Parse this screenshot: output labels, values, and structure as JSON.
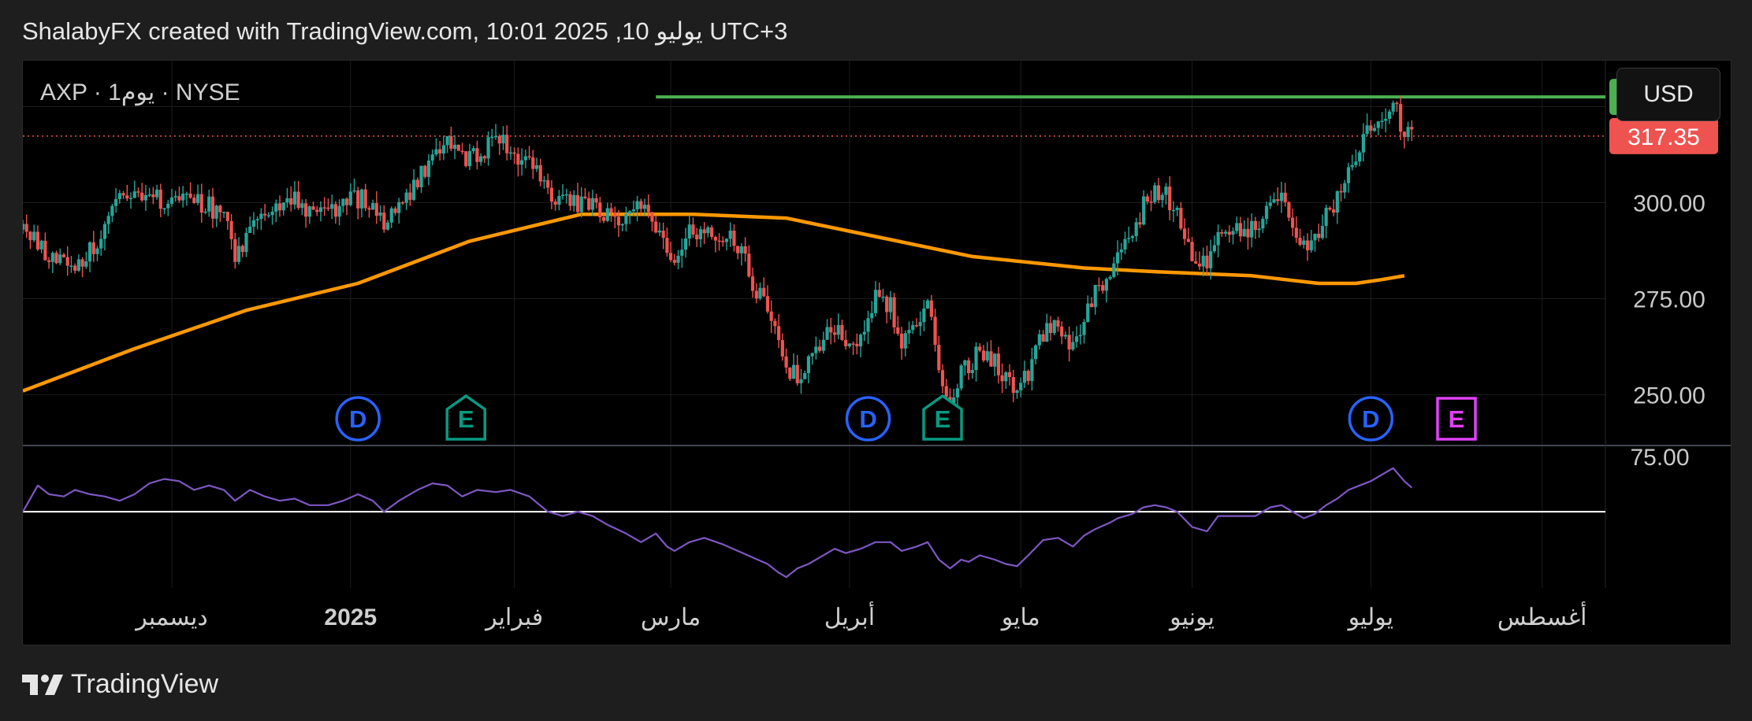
{
  "header": {
    "caption": "ShalabyFX created with TradingView.com, 10:01 2025 ,10 يوليو UTC+3"
  },
  "symbol_label": "AXP · 1يوم · NYSE",
  "currency_button": "USD",
  "footer": {
    "brand": "TradingView",
    "logo_icon": "tradingview-logo-icon"
  },
  "colors": {
    "up": "#26a69a",
    "down": "#ef5350",
    "ma": "#ff9800",
    "rsi": "#7e57c2",
    "resistance": "#4caf50",
    "current_price_line": "#ef5350",
    "dividend_marker": "#2962ff",
    "earnings_past": "#089981",
    "earnings_future": "#e040fb"
  },
  "chart_data": {
    "type": "candlestick",
    "symbol": "AXP",
    "interval": "1يوم",
    "exchange": "NYSE",
    "currency": "USD",
    "price_axis": {
      "range": [
        237,
        337
      ],
      "ticks": [
        "250.00",
        "275.00",
        "300.00"
      ],
      "rsi_top_tick": "75.00"
    },
    "time_axis": {
      "ticks": [
        {
          "label": "ديسمبر",
          "bold": false
        },
        {
          "label": "2025",
          "bold": true
        },
        {
          "label": "فبراير",
          "bold": false
        },
        {
          "label": "مارس",
          "bold": false
        },
        {
          "label": "أبريل",
          "bold": false
        },
        {
          "label": "مايو",
          "bold": false
        },
        {
          "label": "يونيو",
          "bold": false
        },
        {
          "label": "يوليو",
          "bold": false
        },
        {
          "label": "أغسطس",
          "bold": false
        }
      ]
    },
    "price_labels": [
      {
        "value": "327.56",
        "kind": "resistance"
      },
      {
        "value": "317.35",
        "kind": "last"
      }
    ],
    "resistance_level": 327.56,
    "last_price": 317.35,
    "close_path": [
      [
        0,
        293
      ],
      [
        4,
        289
      ],
      [
        8,
        286
      ],
      [
        14,
        282
      ],
      [
        18,
        288
      ],
      [
        22,
        293
      ],
      [
        26,
        300
      ],
      [
        30,
        303
      ],
      [
        34,
        302
      ],
      [
        38,
        300
      ],
      [
        42,
        301
      ],
      [
        46,
        300
      ],
      [
        50,
        299
      ],
      [
        54,
        297
      ],
      [
        57,
        287
      ],
      [
        61,
        292
      ],
      [
        65,
        296
      ],
      [
        69,
        300
      ],
      [
        73,
        302
      ],
      [
        77,
        298
      ],
      [
        82,
        297
      ],
      [
        86,
        300
      ],
      [
        90,
        301
      ],
      [
        94,
        300
      ],
      [
        97,
        294
      ],
      [
        101,
        299
      ],
      [
        106,
        306
      ],
      [
        110,
        312
      ],
      [
        114,
        315
      ],
      [
        118,
        311
      ],
      [
        122,
        313
      ],
      [
        127,
        316
      ],
      [
        131,
        314
      ],
      [
        136,
        310
      ],
      [
        141,
        303
      ],
      [
        145,
        301
      ],
      [
        149,
        300
      ],
      [
        153,
        301
      ],
      [
        157,
        296
      ],
      [
        162,
        297
      ],
      [
        166,
        299
      ],
      [
        170,
        294
      ],
      [
        173,
        289
      ],
      [
        175,
        286
      ],
      [
        179,
        292
      ],
      [
        183,
        294
      ],
      [
        188,
        291
      ],
      [
        192,
        289
      ],
      [
        196,
        279
      ],
      [
        200,
        274
      ],
      [
        203,
        265
      ],
      [
        205,
        258
      ],
      [
        208,
        254
      ],
      [
        211,
        259
      ],
      [
        214,
        262
      ],
      [
        218,
        268
      ],
      [
        221,
        263
      ],
      [
        225,
        266
      ],
      [
        229,
        276
      ],
      [
        233,
        273
      ],
      [
        236,
        264
      ],
      [
        240,
        270
      ],
      [
        243,
        274
      ],
      [
        246,
        255
      ],
      [
        249,
        243
      ],
      [
        252,
        260
      ],
      [
        254,
        257
      ],
      [
        257,
        262
      ],
      [
        261,
        259
      ],
      [
        264,
        254
      ],
      [
        267,
        251
      ],
      [
        270,
        256
      ],
      [
        274,
        266
      ],
      [
        278,
        268
      ],
      [
        282,
        262
      ],
      [
        285,
        270
      ],
      [
        288,
        276
      ],
      [
        292,
        283
      ],
      [
        294,
        285
      ],
      [
        298,
        291
      ],
      [
        301,
        300
      ],
      [
        304,
        303
      ],
      [
        307,
        302
      ],
      [
        310,
        297
      ],
      [
        314,
        285
      ],
      [
        318,
        283
      ],
      [
        321,
        292
      ],
      [
        324,
        293
      ],
      [
        328,
        294
      ],
      [
        331,
        292
      ],
      [
        335,
        300
      ],
      [
        338,
        302
      ],
      [
        341,
        295
      ],
      [
        344,
        289
      ],
      [
        347,
        291
      ],
      [
        350,
        297
      ],
      [
        353,
        301
      ],
      [
        356,
        310
      ],
      [
        359,
        315
      ],
      [
        362,
        319
      ],
      [
        365,
        323
      ],
      [
        368,
        327
      ],
      [
        369,
        323
      ],
      [
        371,
        318
      ],
      [
        373,
        317.35
      ]
    ],
    "moving_average_path": [
      [
        0,
        251
      ],
      [
        30,
        262
      ],
      [
        60,
        272
      ],
      [
        90,
        279
      ],
      [
        120,
        290
      ],
      [
        150,
        297
      ],
      [
        180,
        297
      ],
      [
        205,
        296
      ],
      [
        230,
        291
      ],
      [
        255,
        286
      ],
      [
        285,
        283
      ],
      [
        305,
        282
      ],
      [
        330,
        281
      ],
      [
        348,
        279
      ],
      [
        358,
        279
      ],
      [
        365,
        280
      ],
      [
        371,
        281
      ]
    ],
    "rsi_path": [
      [
        0,
        50
      ],
      [
        4,
        62
      ],
      [
        7,
        58
      ],
      [
        11,
        57
      ],
      [
        14,
        60
      ],
      [
        18,
        58
      ],
      [
        22,
        57
      ],
      [
        26,
        55
      ],
      [
        30,
        58
      ],
      [
        34,
        63
      ],
      [
        38,
        65
      ],
      [
        42,
        64
      ],
      [
        46,
        60
      ],
      [
        50,
        62
      ],
      [
        54,
        60
      ],
      [
        57,
        55
      ],
      [
        61,
        60
      ],
      [
        65,
        57
      ],
      [
        69,
        55
      ],
      [
        73,
        56
      ],
      [
        77,
        53
      ],
      [
        82,
        53
      ],
      [
        86,
        55
      ],
      [
        90,
        58
      ],
      [
        94,
        55
      ],
      [
        97,
        50
      ],
      [
        101,
        55
      ],
      [
        106,
        60
      ],
      [
        110,
        63
      ],
      [
        114,
        62
      ],
      [
        118,
        57
      ],
      [
        122,
        60
      ],
      [
        127,
        59
      ],
      [
        131,
        60
      ],
      [
        136,
        57
      ],
      [
        141,
        50
      ],
      [
        145,
        48
      ],
      [
        149,
        50
      ],
      [
        153,
        48
      ],
      [
        157,
        44
      ],
      [
        162,
        40
      ],
      [
        166,
        36
      ],
      [
        170,
        40
      ],
      [
        173,
        34
      ],
      [
        175,
        32
      ],
      [
        179,
        36
      ],
      [
        183,
        38
      ],
      [
        188,
        35
      ],
      [
        192,
        32
      ],
      [
        196,
        29
      ],
      [
        200,
        26
      ],
      [
        203,
        22
      ],
      [
        205,
        20
      ],
      [
        208,
        24
      ],
      [
        211,
        26
      ],
      [
        214,
        29
      ],
      [
        218,
        33
      ],
      [
        221,
        31
      ],
      [
        225,
        33
      ],
      [
        229,
        36
      ],
      [
        233,
        36
      ],
      [
        236,
        32
      ],
      [
        240,
        34
      ],
      [
        243,
        36
      ],
      [
        246,
        28
      ],
      [
        249,
        24
      ],
      [
        252,
        28
      ],
      [
        254,
        27
      ],
      [
        257,
        30
      ],
      [
        261,
        28
      ],
      [
        264,
        26
      ],
      [
        267,
        25
      ],
      [
        270,
        30
      ],
      [
        274,
        37
      ],
      [
        278,
        38
      ],
      [
        282,
        34
      ],
      [
        285,
        39
      ],
      [
        288,
        42
      ],
      [
        292,
        45
      ],
      [
        294,
        47
      ],
      [
        298,
        49
      ],
      [
        301,
        52
      ],
      [
        304,
        53
      ],
      [
        307,
        52
      ],
      [
        310,
        50
      ],
      [
        314,
        43
      ],
      [
        318,
        41
      ],
      [
        321,
        48
      ],
      [
        324,
        48
      ],
      [
        328,
        48
      ],
      [
        331,
        48
      ],
      [
        335,
        52
      ],
      [
        338,
        53
      ],
      [
        341,
        50
      ],
      [
        344,
        47
      ],
      [
        347,
        49
      ],
      [
        350,
        53
      ],
      [
        353,
        56
      ],
      [
        356,
        60
      ],
      [
        359,
        62
      ],
      [
        362,
        64
      ],
      [
        365,
        67
      ],
      [
        368,
        70
      ],
      [
        369,
        68
      ],
      [
        371,
        64
      ],
      [
        373,
        61
      ]
    ],
    "rsi_reference_level": 50,
    "events": [
      {
        "type": "dividend",
        "label": "D",
        "at": 90
      },
      {
        "type": "earnings",
        "label": "E",
        "at": 119
      },
      {
        "type": "dividend",
        "label": "D",
        "at": 227
      },
      {
        "type": "earnings",
        "label": "E",
        "at": 247
      },
      {
        "type": "dividend",
        "label": "D",
        "at": 362
      },
      {
        "type": "earnings_upcoming",
        "label": "E",
        "at": 385
      }
    ],
    "date_ticks_at": [
      40,
      88,
      132,
      174,
      222,
      268,
      314,
      362,
      408
    ],
    "x_range": [
      0,
      425
    ]
  }
}
